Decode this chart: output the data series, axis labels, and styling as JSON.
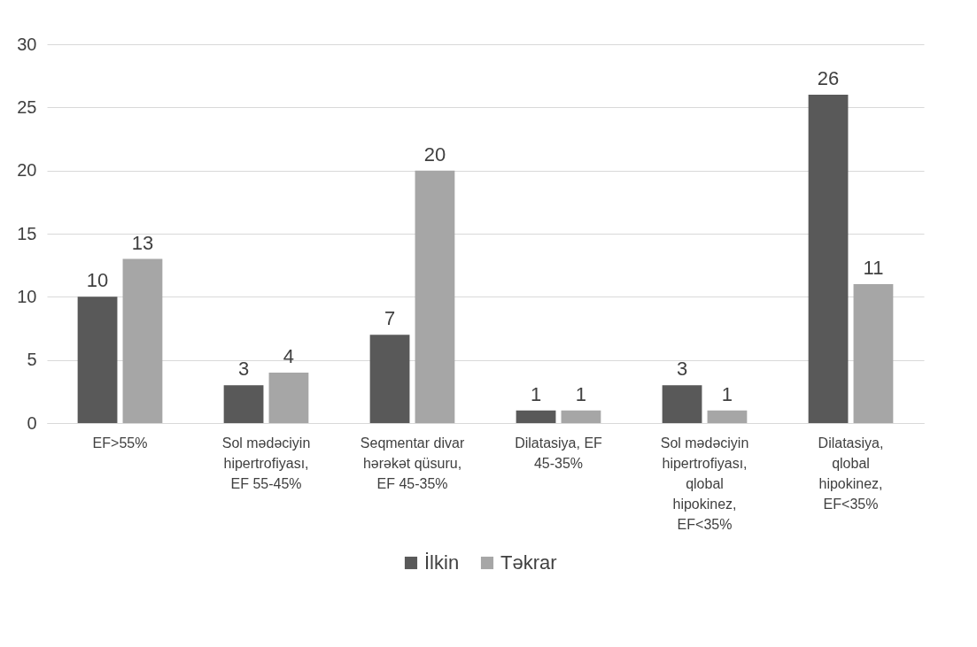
{
  "chart_data": {
    "type": "bar",
    "categories": [
      "EF>55%",
      "Sol mədəciyin hipertrofiyası, EF 55-45%",
      "Seqmentar divar hərəkət qüsuru, EF 45-35%",
      "Dilatasiya, EF 45-35%",
      "Sol mədəciyin hipertrofiyası, qlobal hipokinez, EF<35%",
      "Dilatasiya, qlobal hipokinez, EF<35%"
    ],
    "series": [
      {
        "name": "İlkin",
        "color": "#595959",
        "values": [
          10,
          3,
          7,
          1,
          3,
          26
        ]
      },
      {
        "name": "Təkrar",
        "color": "#a6a6a6",
        "values": [
          13,
          4,
          20,
          1,
          1,
          11
        ]
      }
    ],
    "ylim": [
      0,
      30
    ],
    "yticks": [
      0,
      5,
      10,
      15,
      20,
      25,
      30
    ],
    "grid": "y",
    "legend": "bottom",
    "data_labels": true
  }
}
